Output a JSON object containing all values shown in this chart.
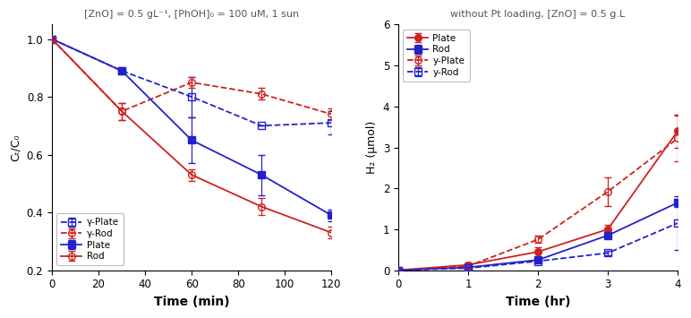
{
  "left": {
    "title": "[ZnO] = 0.5 gL⁻¹, [PhOH]₀ = 100 uM, 1 sun",
    "xlabel": "Time (min)",
    "ylabel": "Cₜ/C₀",
    "xlim": [
      0,
      120
    ],
    "ylim": [
      0.2,
      1.05
    ],
    "yticks": [
      0.2,
      0.4,
      0.6,
      0.8,
      1.0
    ],
    "xticks": [
      0,
      20,
      40,
      60,
      80,
      100,
      120
    ],
    "series": {
      "y_Plate": {
        "x": [
          0,
          30,
          60,
          90,
          120
        ],
        "y": [
          1.0,
          0.89,
          0.8,
          0.7,
          0.71
        ],
        "yerr": [
          0.0,
          0.0,
          0.07,
          0.0,
          0.04
        ],
        "color": "#2222cc",
        "marker": "s",
        "marker_fill": "none",
        "linestyle": "--",
        "label": "γ-Plate"
      },
      "y_Rod": {
        "x": [
          0,
          30,
          60,
          90,
          120
        ],
        "y": [
          1.0,
          0.75,
          0.85,
          0.81,
          0.74
        ],
        "yerr": [
          0.0,
          0.03,
          0.02,
          0.02,
          0.02
        ],
        "color": "#cc2222",
        "marker": "o",
        "marker_fill": "none",
        "linestyle": "--",
        "label": "γ-Rod"
      },
      "Plate": {
        "x": [
          0,
          30,
          60,
          90,
          120
        ],
        "y": [
          1.0,
          0.89,
          0.65,
          0.53,
          0.39
        ],
        "yerr": [
          0.0,
          0.0,
          0.08,
          0.07,
          0.02
        ],
        "color": "#2222cc",
        "marker": "s",
        "marker_fill": "full",
        "linestyle": "-",
        "label": "Plate"
      },
      "Rod": {
        "x": [
          0,
          30,
          60,
          90,
          120
        ],
        "y": [
          1.0,
          0.75,
          0.53,
          0.42,
          0.33
        ],
        "yerr": [
          0.0,
          0.03,
          0.02,
          0.03,
          0.02
        ],
        "color": "#cc2222",
        "marker": "o",
        "marker_fill": "none",
        "linestyle": "-",
        "label": "Rod"
      }
    },
    "legend_order": [
      "y_Plate",
      "y_Rod",
      "Plate",
      "Rod"
    ]
  },
  "right": {
    "title": "without Pt loading, [ZnO] = 0.5 g.L",
    "xlabel": "Time (hr)",
    "ylabel": "H₂ (μmol)",
    "xlim": [
      0,
      4
    ],
    "ylim": [
      0,
      6
    ],
    "yticks": [
      0,
      1,
      2,
      3,
      4,
      5,
      6
    ],
    "xticks": [
      0,
      1,
      2,
      3,
      4
    ],
    "series": {
      "Plate": {
        "x": [
          0,
          1,
          2,
          3,
          4
        ],
        "y": [
          0.0,
          0.13,
          0.45,
          1.0,
          3.4
        ],
        "yerr": [
          0.0,
          0.05,
          0.1,
          0.1,
          0.4
        ],
        "color": "#cc2222",
        "marker": "o",
        "marker_fill": "full",
        "linestyle": "-",
        "label": "Plate"
      },
      "Rod": {
        "x": [
          0,
          1,
          2,
          3,
          4
        ],
        "y": [
          0.0,
          0.07,
          0.25,
          0.85,
          1.65
        ],
        "yerr": [
          0.0,
          0.03,
          0.04,
          0.08,
          0.1
        ],
        "color": "#2222cc",
        "marker": "s",
        "marker_fill": "full",
        "linestyle": "-",
        "label": "Rod"
      },
      "y_Plate": {
        "x": [
          0,
          1,
          2,
          3,
          4
        ],
        "y": [
          0.0,
          0.1,
          0.75,
          1.92,
          3.22
        ],
        "yerr": [
          0.0,
          0.04,
          0.09,
          0.35,
          0.55
        ],
        "color": "#cc2222",
        "marker": "o",
        "marker_fill": "none",
        "linestyle": "--",
        "label": "y-Plate"
      },
      "y_Rod": {
        "x": [
          0,
          1,
          2,
          3,
          4
        ],
        "y": [
          0.0,
          0.05,
          0.22,
          0.42,
          1.15
        ],
        "yerr": [
          0.0,
          0.02,
          0.03,
          0.05,
          0.65
        ],
        "color": "#2222cc",
        "marker": "s",
        "marker_fill": "none",
        "linestyle": "--",
        "label": "y-Rod"
      }
    },
    "legend_order": [
      "Plate",
      "Rod",
      "y_Plate",
      "y_Rod"
    ]
  }
}
